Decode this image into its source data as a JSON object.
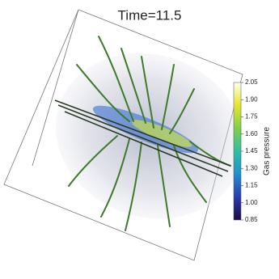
{
  "title": "Time=11.5",
  "colorbar": {
    "label": "Gas pressure",
    "range": [
      0.85,
      2.05
    ],
    "colormap": [
      "#1b0c41",
      "#2a3bb0",
      "#1f8fd0",
      "#2fc0a0",
      "#7ed04a",
      "#e6e62a",
      "#fffff0"
    ],
    "ticks": [
      {
        "value": 2.05,
        "label": "2.05"
      },
      {
        "value": 1.9,
        "label": "1.90"
      },
      {
        "value": 1.75,
        "label": "1.75"
      },
      {
        "value": 1.6,
        "label": "1.60"
      },
      {
        "value": 1.45,
        "label": "1.45"
      },
      {
        "value": 1.3,
        "label": "1.30"
      },
      {
        "value": 1.15,
        "label": "1.15"
      },
      {
        "value": 1.0,
        "label": "1.00"
      },
      {
        "value": 0.85,
        "label": "0.85"
      }
    ]
  }
}
